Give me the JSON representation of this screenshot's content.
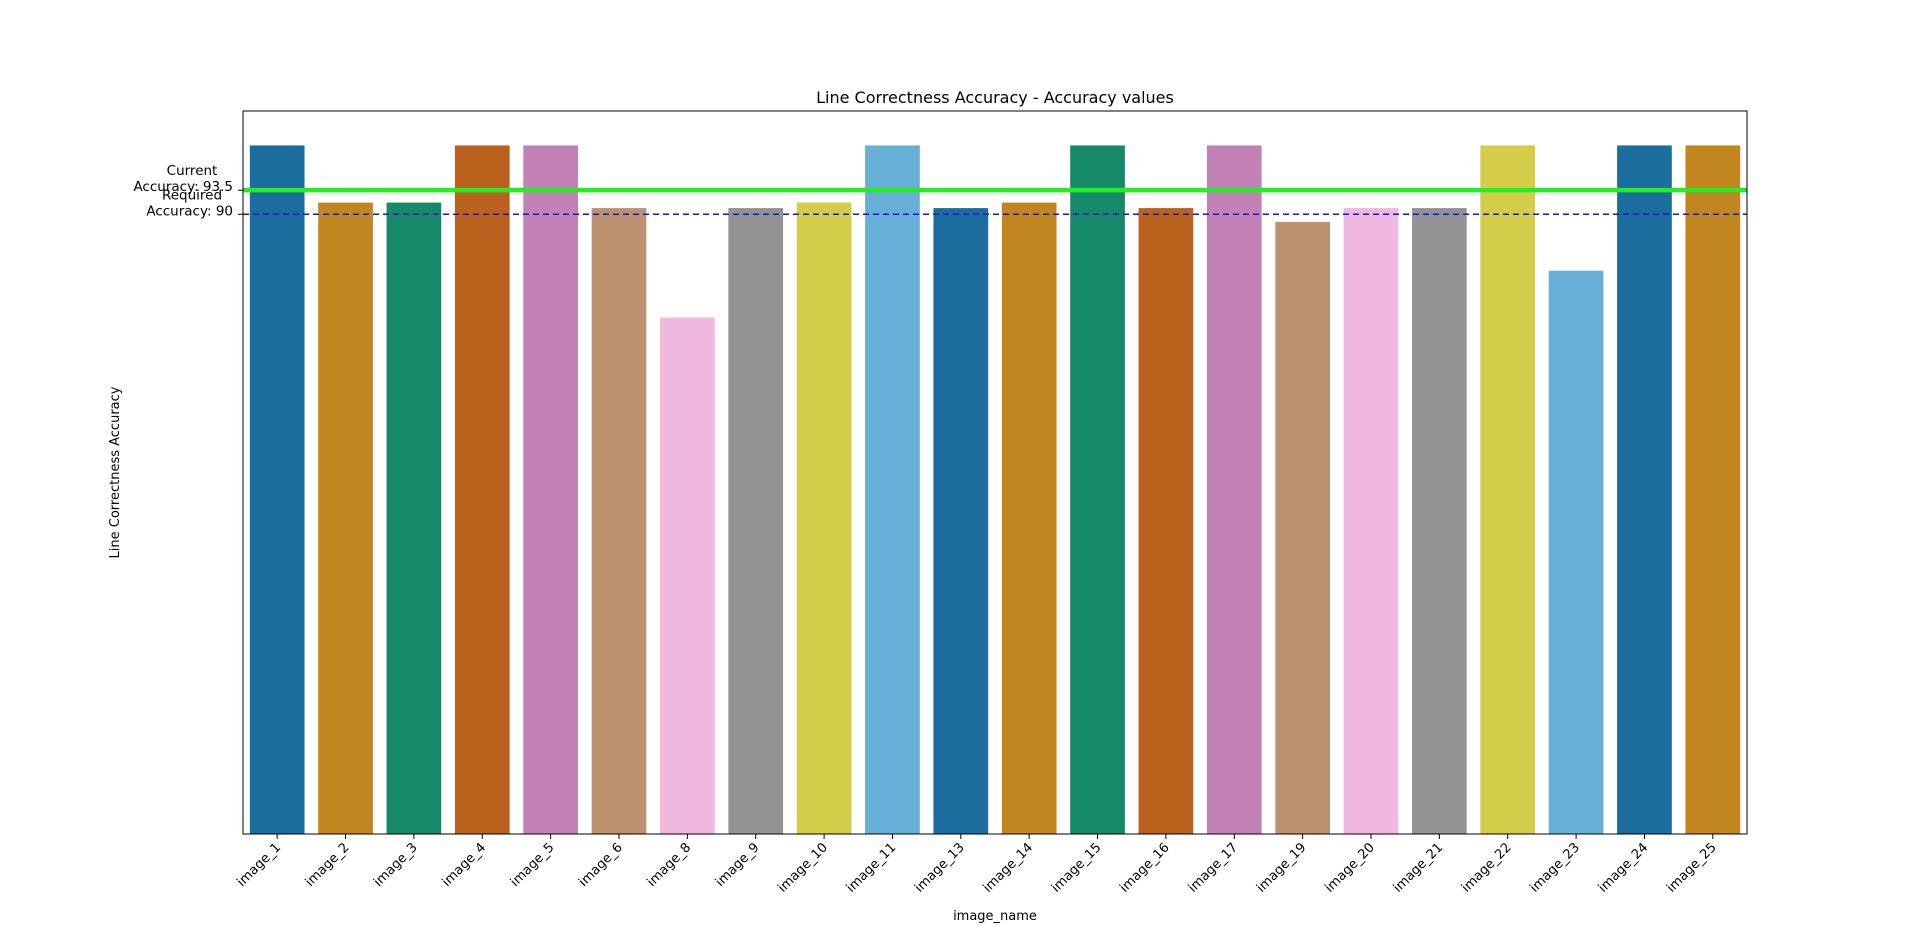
{
  "chart_data": {
    "type": "bar",
    "title": "Line Correctness Accuracy - Accuracy values",
    "xlabel": "image_name",
    "ylabel": "Line Correctness Accuracy",
    "ylim": [
      0,
      105
    ],
    "grid": false,
    "categories": [
      "image_1",
      "image_2",
      "image_3",
      "image_4",
      "image_5",
      "image_6",
      "image_8",
      "image_9",
      "image_10",
      "image_11",
      "image_13",
      "image_14",
      "image_15",
      "image_16",
      "image_17",
      "image_19",
      "image_20",
      "image_21",
      "image_22",
      "image_23",
      "image_24",
      "image_25"
    ],
    "values": [
      100,
      91.7,
      91.7,
      100,
      100,
      90.9,
      75,
      90.9,
      91.7,
      100,
      90.9,
      91.7,
      100,
      90.9,
      100,
      88.9,
      90.9,
      90.9,
      100,
      81.8,
      100,
      100
    ],
    "bar_colors": [
      "#1a6d9c",
      "#c1861f",
      "#168a68",
      "#b9611d",
      "#c282b5",
      "#bd9270",
      "#f0b8de",
      "#939393",
      "#d4cd4a",
      "#68afd7",
      "#1a6d9c",
      "#c1861f",
      "#168a68",
      "#b9611d",
      "#c282b5",
      "#bd9270",
      "#f0b8de",
      "#939393",
      "#d4cd4a",
      "#68afd7",
      "#1a6d9c",
      "#c1861f"
    ],
    "reference_lines": [
      {
        "label_line1": "Current",
        "label_line2": "Accuracy: 93.5",
        "value": 93.5,
        "color": "#22ee22",
        "style": "solid"
      },
      {
        "label_line1": "Required",
        "label_line2": "Accuracy: 90",
        "value": 90,
        "color": "#1515d6",
        "style": "dashed"
      }
    ]
  }
}
